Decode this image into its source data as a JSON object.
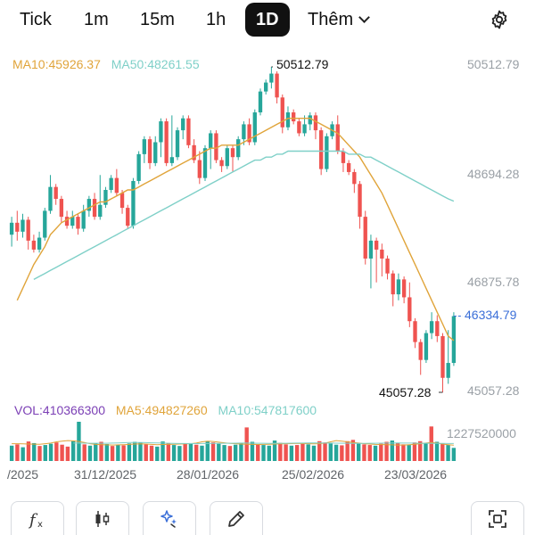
{
  "timeframe_tabs": [
    "Tick",
    "1m",
    "15m",
    "1h",
    "1D"
  ],
  "active_tab": "1D",
  "more_label": "Thêm",
  "colors": {
    "up": "#26a69a",
    "down": "#ef5350",
    "ma10": "#e0a43a",
    "ma50": "#7fd0c8",
    "vol_label": "#7b3fb5",
    "last_price": "#3b6fd8"
  },
  "price_legend": {
    "ma10": "MA10:45926.37",
    "ma50": "MA50:48261.55"
  },
  "volume_legend": {
    "vol": "VOL:410366300",
    "ma5": "MA5:494827260",
    "ma10": "MA10:547817600"
  },
  "price_axis": [
    "50512.79",
    "48694.28",
    "46875.78",
    "45057.28"
  ],
  "volume_axis": "1227520000",
  "high_annotation": "50512.79",
  "low_annotation": "45057.28",
  "last_price": "46334.79",
  "date_labels": [
    "/2025",
    "31/12/2025",
    "28/01/2026",
    "25/02/2026",
    "23/03/2026"
  ],
  "toolbar_icons": [
    "function-icon",
    "candlestick-icon",
    "sparkle-icon",
    "pencil-icon",
    "fullscreen-icon"
  ],
  "chart_data": [
    {
      "type": "candlestick",
      "title": "",
      "y_range": [
        45057.28,
        50512.79
      ],
      "x_labels": [
        "/2025",
        "31/12/2025",
        "28/01/2026",
        "25/02/2026",
        "23/03/2026"
      ],
      "candles": [
        {
          "o": 47700,
          "c": 47900,
          "h": 48000,
          "l": 47500
        },
        {
          "o": 47900,
          "c": 47750,
          "h": 48100,
          "l": 47600
        },
        {
          "o": 47750,
          "c": 47950,
          "h": 48050,
          "l": 47650
        },
        {
          "o": 47950,
          "c": 47600,
          "h": 48000,
          "l": 47450
        },
        {
          "o": 47600,
          "c": 47450,
          "h": 47700,
          "l": 47400
        },
        {
          "o": 47450,
          "c": 47650,
          "h": 47750,
          "l": 47400
        },
        {
          "o": 47650,
          "c": 48100,
          "h": 48150,
          "l": 47600
        },
        {
          "o": 48100,
          "c": 48500,
          "h": 48700,
          "l": 48050
        },
        {
          "o": 48500,
          "c": 48300,
          "h": 48550,
          "l": 48200
        },
        {
          "o": 48300,
          "c": 48000,
          "h": 48350,
          "l": 47900
        },
        {
          "o": 48000,
          "c": 47850,
          "h": 48100,
          "l": 47800
        },
        {
          "o": 47850,
          "c": 48000,
          "h": 48100,
          "l": 47800
        },
        {
          "o": 48000,
          "c": 47800,
          "h": 48050,
          "l": 47700
        },
        {
          "o": 47800,
          "c": 48100,
          "h": 48200,
          "l": 47750
        },
        {
          "o": 48100,
          "c": 48300,
          "h": 48350,
          "l": 48000
        },
        {
          "o": 48300,
          "c": 48000,
          "h": 48400,
          "l": 47950
        },
        {
          "o": 48000,
          "c": 48200,
          "h": 48700,
          "l": 47950
        },
        {
          "o": 48200,
          "c": 48450,
          "h": 48500,
          "l": 48150
        },
        {
          "o": 48450,
          "c": 48650,
          "h": 48700,
          "l": 48400
        },
        {
          "o": 48650,
          "c": 48400,
          "h": 48800,
          "l": 48350
        },
        {
          "o": 48400,
          "c": 48150,
          "h": 48450,
          "l": 48050
        },
        {
          "o": 48150,
          "c": 47850,
          "h": 48200,
          "l": 47800
        },
        {
          "o": 47850,
          "c": 48600,
          "h": 48650,
          "l": 47800
        },
        {
          "o": 48600,
          "c": 49050,
          "h": 49100,
          "l": 48550
        },
        {
          "o": 49050,
          "c": 49300,
          "h": 49350,
          "l": 48900
        },
        {
          "o": 49300,
          "c": 48900,
          "h": 49350,
          "l": 48800
        },
        {
          "o": 48900,
          "c": 49250,
          "h": 49350,
          "l": 48850
        },
        {
          "o": 49250,
          "c": 49600,
          "h": 49650,
          "l": 49000
        },
        {
          "o": 49600,
          "c": 48900,
          "h": 49650,
          "l": 48850
        },
        {
          "o": 48900,
          "c": 49000,
          "h": 49700,
          "l": 48850
        },
        {
          "o": 49000,
          "c": 49450,
          "h": 49500,
          "l": 48950
        },
        {
          "o": 49450,
          "c": 49650,
          "h": 49700,
          "l": 49300
        },
        {
          "o": 49650,
          "c": 49200,
          "h": 49700,
          "l": 49150
        },
        {
          "o": 49200,
          "c": 48950,
          "h": 49300,
          "l": 48900
        },
        {
          "o": 48950,
          "c": 48650,
          "h": 49100,
          "l": 48550
        },
        {
          "o": 48650,
          "c": 49150,
          "h": 49200,
          "l": 48600
        },
        {
          "o": 49150,
          "c": 49400,
          "h": 49450,
          "l": 48800
        },
        {
          "o": 49400,
          "c": 48950,
          "h": 49450,
          "l": 48900
        },
        {
          "o": 48950,
          "c": 48850,
          "h": 49000,
          "l": 48750
        },
        {
          "o": 48850,
          "c": 49150,
          "h": 49200,
          "l": 48800
        },
        {
          "o": 49150,
          "c": 49000,
          "h": 49200,
          "l": 48750
        },
        {
          "o": 49000,
          "c": 49300,
          "h": 49350,
          "l": 48950
        },
        {
          "o": 49300,
          "c": 49550,
          "h": 49600,
          "l": 49200
        },
        {
          "o": 49550,
          "c": 49250,
          "h": 49650,
          "l": 49200
        },
        {
          "o": 49250,
          "c": 49750,
          "h": 49800,
          "l": 49200
        },
        {
          "o": 49750,
          "c": 50100,
          "h": 50150,
          "l": 49700
        },
        {
          "o": 50100,
          "c": 50250,
          "h": 50300,
          "l": 50050
        },
        {
          "o": 50250,
          "c": 50400,
          "h": 50512.79,
          "l": 50150
        },
        {
          "o": 50400,
          "c": 50000,
          "h": 50450,
          "l": 49900
        },
        {
          "o": 50000,
          "c": 49500,
          "h": 50050,
          "l": 49400
        },
        {
          "o": 49500,
          "c": 49750,
          "h": 49850,
          "l": 49450
        },
        {
          "o": 49750,
          "c": 49600,
          "h": 49800,
          "l": 49550
        },
        {
          "o": 49600,
          "c": 49400,
          "h": 49650,
          "l": 49350
        },
        {
          "o": 49400,
          "c": 49550,
          "h": 49700,
          "l": 49350
        },
        {
          "o": 49550,
          "c": 49700,
          "h": 49750,
          "l": 49450
        },
        {
          "o": 49700,
          "c": 49450,
          "h": 49750,
          "l": 49300
        },
        {
          "o": 49450,
          "c": 48800,
          "h": 49500,
          "l": 48700
        },
        {
          "o": 48800,
          "c": 49350,
          "h": 49400,
          "l": 48750
        },
        {
          "o": 49350,
          "c": 49550,
          "h": 49600,
          "l": 49300
        },
        {
          "o": 49550,
          "c": 49100,
          "h": 49700,
          "l": 49050
        },
        {
          "o": 49100,
          "c": 48900,
          "h": 49150,
          "l": 48750
        },
        {
          "o": 48900,
          "c": 48750,
          "h": 48950,
          "l": 48700
        },
        {
          "o": 48750,
          "c": 48550,
          "h": 48800,
          "l": 48400
        },
        {
          "o": 48550,
          "c": 48000,
          "h": 48600,
          "l": 47800
        },
        {
          "o": 48000,
          "c": 47300,
          "h": 48100,
          "l": 47200
        },
        {
          "o": 47300,
          "c": 47600,
          "h": 47700,
          "l": 46800
        },
        {
          "o": 47600,
          "c": 47450,
          "h": 47650,
          "l": 46900
        },
        {
          "o": 47450,
          "c": 47300,
          "h": 47550,
          "l": 47000
        },
        {
          "o": 47300,
          "c": 47050,
          "h": 47350,
          "l": 46950
        },
        {
          "o": 47050,
          "c": 46700,
          "h": 47100,
          "l": 46500
        },
        {
          "o": 46700,
          "c": 46950,
          "h": 47050,
          "l": 46600
        },
        {
          "o": 46950,
          "c": 46650,
          "h": 47000,
          "l": 46550
        },
        {
          "o": 46650,
          "c": 46250,
          "h": 46900,
          "l": 46150
        },
        {
          "o": 46250,
          "c": 45900,
          "h": 46300,
          "l": 45800
        },
        {
          "o": 45900,
          "c": 45600,
          "h": 45950,
          "l": 45350
        },
        {
          "o": 45600,
          "c": 46050,
          "h": 46100,
          "l": 45550
        },
        {
          "o": 46050,
          "c": 46250,
          "h": 46400,
          "l": 45950
        },
        {
          "o": 46250,
          "c": 46000,
          "h": 46350,
          "l": 45900
        },
        {
          "o": 46000,
          "c": 45300,
          "h": 46050,
          "l": 45057.28
        },
        {
          "o": 45300,
          "c": 45550,
          "h": 46100,
          "l": 45200
        },
        {
          "o": 45550,
          "c": 46334.79,
          "h": 46400,
          "l": 45500
        }
      ],
      "series": [
        {
          "name": "MA10",
          "values": [
            46600,
            46800,
            47000,
            47200,
            47350,
            47500,
            47700,
            47800,
            47900,
            47950,
            48000,
            48050,
            48100,
            48150,
            48200,
            48250,
            48250,
            48300,
            48350,
            48400,
            48450,
            48450,
            48500,
            48550,
            48600,
            48650,
            48700,
            48750,
            48800,
            48850,
            48900,
            48950,
            49000,
            49050,
            49100,
            49150,
            49150,
            49200,
            49200,
            49200,
            49200,
            49250,
            49300,
            49350,
            49400,
            49450,
            49500,
            49550,
            49600,
            49650,
            49650,
            49650,
            49650,
            49650,
            49600,
            49550,
            49500,
            49450,
            49400,
            49300,
            49200,
            49100,
            49000,
            48850,
            48700,
            48550,
            48400,
            48200,
            48000,
            47800,
            47600,
            47400,
            47200,
            47000,
            46800,
            46600,
            46400,
            46200,
            46000,
            45926.37
          ]
        },
        {
          "name": "MA50",
          "values": [
            46950,
            47000,
            47050,
            47100,
            47150,
            47200,
            47250,
            47300,
            47350,
            47400,
            47450,
            47500,
            47550,
            47600,
            47650,
            47700,
            47750,
            47800,
            47850,
            47900,
            47950,
            48000,
            48050,
            48100,
            48150,
            48200,
            48250,
            48300,
            48350,
            48400,
            48450,
            48500,
            48550,
            48600,
            48650,
            48700,
            48750,
            48800,
            48850,
            48900,
            48950,
            48950,
            49000,
            49000,
            49050,
            49050,
            49100,
            49100,
            49100,
            49100,
            49100,
            49100,
            49100,
            49100,
            49100,
            49100,
            49100,
            49050,
            49050,
            49050,
            49000,
            49000,
            48950,
            48900,
            48850,
            48800,
            48750,
            48700,
            48650,
            48600,
            48550,
            48500,
            48450,
            48400,
            48350,
            48300,
            48261.55
          ]
        }
      ]
    },
    {
      "type": "bar",
      "title": "",
      "y_max": 1227520000,
      "values": [
        480000000,
        520000000,
        430000000,
        610000000,
        560000000,
        470000000,
        500000000,
        540000000,
        580000000,
        510000000,
        450000000,
        620000000,
        1227520000,
        520000000,
        480000000,
        560000000,
        600000000,
        530000000,
        470000000,
        510000000,
        490000000,
        550000000,
        600000000,
        580000000,
        520000000,
        480000000,
        450000000,
        610000000,
        560000000,
        500000000,
        470000000,
        530000000,
        560000000,
        510000000,
        480000000,
        620000000,
        580000000,
        540000000,
        500000000,
        470000000,
        510000000,
        560000000,
        1050000000,
        600000000,
        520000000,
        500000000,
        480000000,
        640000000,
        570000000,
        520000000,
        480000000,
        500000000,
        540000000,
        520000000,
        480000000,
        620000000,
        580000000,
        550000000,
        510000000,
        490000000,
        620000000,
        660000000,
        560000000,
        520000000,
        500000000,
        480000000,
        540000000,
        600000000,
        640000000,
        560000000,
        520000000,
        500000000,
        580000000,
        620000000,
        560000000,
        1080000000,
        600000000,
        540000000,
        500000000,
        410366300
      ],
      "up": [
        true,
        false,
        true,
        false,
        true,
        false,
        true,
        true,
        false,
        false,
        false,
        true,
        true,
        false,
        true,
        true,
        false,
        true,
        false,
        true,
        false,
        true,
        true,
        true,
        false,
        false,
        true,
        true,
        false,
        true,
        true,
        false,
        true,
        false,
        true,
        true,
        false,
        true,
        true,
        false,
        true,
        true,
        false,
        true,
        false,
        true,
        true,
        true,
        false,
        false,
        true,
        false,
        false,
        true,
        true,
        false,
        false,
        true,
        true,
        false,
        false,
        false,
        true,
        false,
        false,
        true,
        false,
        false,
        true,
        false,
        false,
        true,
        false,
        false,
        true,
        false,
        true,
        false,
        true,
        true
      ],
      "series": [
        {
          "name": "MA5",
          "values": [
            540000000,
            540000000,
            535000000,
            530000000,
            528000000,
            525000000,
            540000000,
            560000000,
            600000000,
            620000000,
            640000000,
            630000000,
            610000000,
            580000000,
            540000000,
            520000000,
            510000000,
            505000000,
            500000000,
            505000000,
            510000000,
            520000000,
            530000000,
            535000000,
            530000000,
            520000000,
            510000000,
            515000000,
            520000000,
            525000000,
            530000000,
            535000000,
            540000000,
            560000000,
            600000000,
            620000000,
            610000000,
            590000000,
            570000000,
            550000000,
            540000000,
            530000000,
            525000000,
            520000000,
            515000000,
            520000000,
            525000000,
            530000000,
            535000000,
            540000000,
            545000000,
            550000000,
            545000000,
            540000000,
            535000000,
            540000000,
            560000000,
            600000000,
            640000000,
            620000000,
            600000000,
            580000000,
            560000000,
            540000000,
            530000000,
            520000000,
            515000000,
            510000000,
            505000000,
            500000000,
            500000000,
            510000000,
            520000000,
            540000000,
            560000000,
            580000000,
            560000000,
            530000000,
            510000000,
            494827260
          ]
        },
        {
          "name": "MA10",
          "values": [
            560000000,
            560000000,
            558000000,
            556000000,
            555000000,
            554000000,
            556000000,
            560000000,
            566000000,
            572000000,
            578000000,
            580000000,
            578000000,
            575000000,
            570000000,
            565000000,
            560000000,
            555000000,
            550000000,
            548000000,
            546000000,
            545000000,
            545000000,
            546000000,
            548000000,
            550000000,
            552000000,
            554000000,
            556000000,
            558000000,
            560000000,
            560000000,
            558000000,
            556000000,
            554000000,
            552000000,
            552000000,
            554000000,
            556000000,
            558000000,
            560000000,
            562000000,
            564000000,
            565000000,
            564000000,
            562000000,
            560000000,
            558000000,
            556000000,
            554000000,
            552000000,
            552000000,
            553000000,
            554000000,
            556000000,
            558000000,
            560000000,
            562000000,
            564000000,
            562000000,
            560000000,
            558000000,
            556000000,
            554000000,
            552000000,
            550000000,
            549000000,
            548000000,
            547817600
          ]
        }
      ]
    }
  ]
}
